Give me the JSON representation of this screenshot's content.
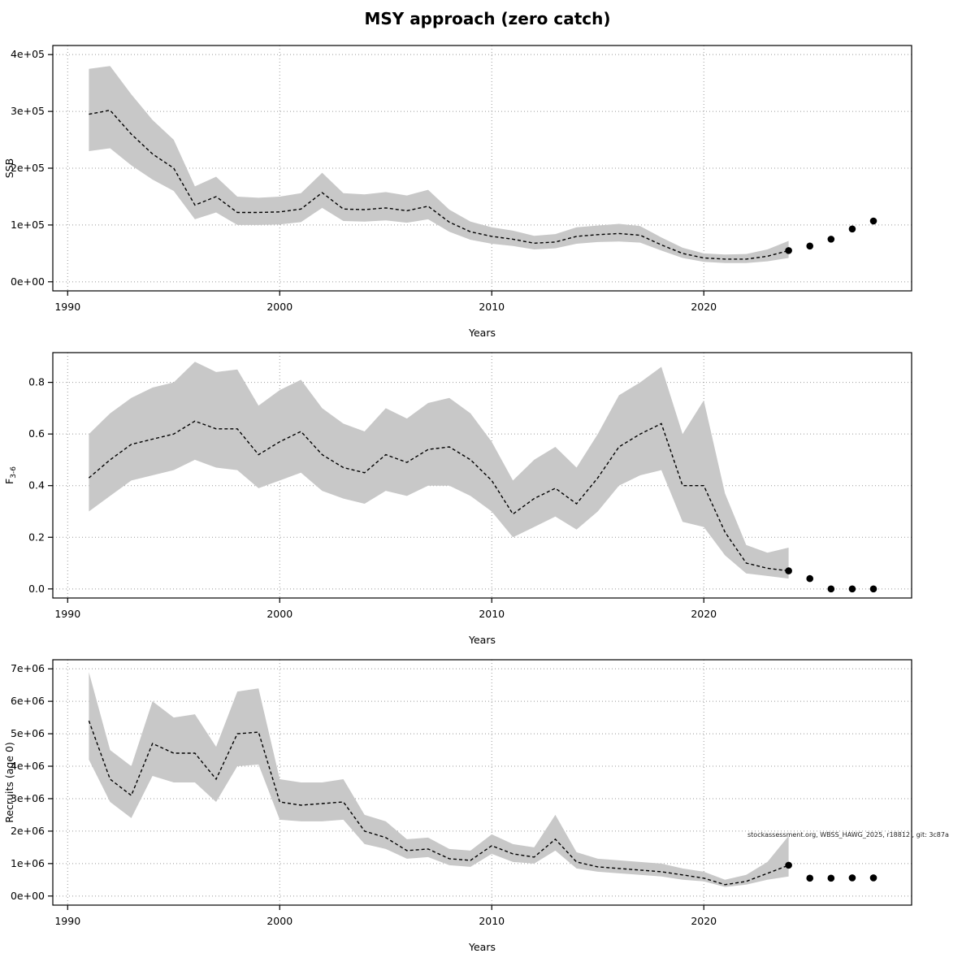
{
  "title": "MSY approach (zero catch)",
  "chart_data": [
    {
      "type": "area",
      "name": "ssb",
      "ylabel": "SSB",
      "xlabel": "Years",
      "xlim": [
        1989.3,
        2029.8
      ],
      "ylim": [
        0,
        400000
      ],
      "grid": true,
      "x": [
        1991,
        1992,
        1993,
        1994,
        1995,
        1996,
        1997,
        1998,
        1999,
        2000,
        2001,
        2002,
        2003,
        2004,
        2005,
        2006,
        2007,
        2008,
        2009,
        2010,
        2011,
        2012,
        2013,
        2014,
        2015,
        2016,
        2017,
        2018,
        2019,
        2020,
        2021,
        2022,
        2023,
        2024
      ],
      "series": [
        {
          "name": "estimate",
          "values": [
            295000,
            302000,
            260000,
            225000,
            200000,
            135000,
            150000,
            122000,
            122000,
            123000,
            128000,
            157000,
            128000,
            127000,
            130000,
            125000,
            133000,
            105000,
            88000,
            80000,
            75000,
            68000,
            70000,
            80000,
            83000,
            85000,
            82000,
            65000,
            50000,
            42000,
            40000,
            40000,
            45000,
            55000
          ]
        },
        {
          "name": "lower",
          "values": [
            230000,
            235000,
            205000,
            180000,
            160000,
            110000,
            122000,
            100000,
            100000,
            101000,
            105000,
            130000,
            107000,
            106000,
            108000,
            104000,
            110000,
            88000,
            74000,
            67000,
            63000,
            57000,
            59000,
            67000,
            70000,
            71000,
            69000,
            55000,
            42000,
            35000,
            33000,
            33000,
            36000,
            42000
          ]
        },
        {
          "name": "upper",
          "values": [
            375000,
            380000,
            330000,
            285000,
            250000,
            168000,
            185000,
            150000,
            148000,
            150000,
            156000,
            192000,
            156000,
            154000,
            158000,
            152000,
            162000,
            127000,
            106000,
            96000,
            90000,
            81000,
            84000,
            96000,
            99000,
            102000,
            98000,
            78000,
            60000,
            50000,
            48000,
            49000,
            57000,
            72000
          ]
        }
      ],
      "forecast": {
        "x": [
          2024,
          2025,
          2026,
          2027,
          2028
        ],
        "y": [
          55000,
          63000,
          75000,
          93000,
          107000
        ]
      },
      "yticks": {
        "values": [
          0,
          100000,
          200000,
          300000,
          400000
        ],
        "labels": [
          "0e+00",
          "1e+05",
          "2e+05",
          "3e+05",
          "4e+05"
        ]
      },
      "xticks": {
        "values": [
          1990,
          2000,
          2010,
          2020
        ],
        "labels": [
          "1990",
          "2000",
          "2010",
          "2020"
        ]
      }
    },
    {
      "type": "area",
      "name": "f-bar",
      "ylabel": "F",
      "ylabel_sub": "3-6",
      "xlabel": "Years",
      "xlim": [
        1989.3,
        2029.8
      ],
      "ylim": [
        0,
        0.88
      ],
      "grid": true,
      "x": [
        1991,
        1992,
        1993,
        1994,
        1995,
        1996,
        1997,
        1998,
        1999,
        2000,
        2001,
        2002,
        2003,
        2004,
        2005,
        2006,
        2007,
        2008,
        2009,
        2010,
        2011,
        2012,
        2013,
        2014,
        2015,
        2016,
        2017,
        2018,
        2019,
        2020,
        2021,
        2022,
        2023,
        2024
      ],
      "series": [
        {
          "name": "estimate",
          "values": [
            0.43,
            0.5,
            0.56,
            0.58,
            0.6,
            0.65,
            0.62,
            0.62,
            0.52,
            0.57,
            0.61,
            0.52,
            0.47,
            0.45,
            0.52,
            0.49,
            0.54,
            0.55,
            0.5,
            0.42,
            0.29,
            0.35,
            0.39,
            0.33,
            0.43,
            0.55,
            0.6,
            0.64,
            0.4,
            0.4,
            0.22,
            0.1,
            0.08,
            0.07
          ]
        },
        {
          "name": "lower",
          "values": [
            0.3,
            0.36,
            0.42,
            0.44,
            0.46,
            0.5,
            0.47,
            0.46,
            0.39,
            0.42,
            0.45,
            0.38,
            0.35,
            0.33,
            0.38,
            0.36,
            0.4,
            0.4,
            0.36,
            0.3,
            0.2,
            0.24,
            0.28,
            0.23,
            0.3,
            0.4,
            0.44,
            0.46,
            0.26,
            0.24,
            0.13,
            0.06,
            0.05,
            0.04
          ]
        },
        {
          "name": "upper",
          "values": [
            0.6,
            0.68,
            0.74,
            0.78,
            0.8,
            0.88,
            0.84,
            0.85,
            0.71,
            0.77,
            0.81,
            0.7,
            0.64,
            0.61,
            0.7,
            0.66,
            0.72,
            0.74,
            0.68,
            0.57,
            0.42,
            0.5,
            0.55,
            0.47,
            0.6,
            0.75,
            0.8,
            0.86,
            0.6,
            0.73,
            0.37,
            0.17,
            0.14,
            0.16
          ]
        }
      ],
      "forecast": {
        "x": [
          2024,
          2025,
          2026,
          2027,
          2028
        ],
        "y": [
          0.07,
          0.04,
          0.0,
          0.0,
          0.0
        ]
      },
      "yticks": {
        "values": [
          0.0,
          0.2,
          0.4,
          0.6,
          0.8
        ],
        "labels": [
          "0.0",
          "0.2",
          "0.4",
          "0.6",
          "0.8"
        ]
      },
      "xticks": {
        "values": [
          1990,
          2000,
          2010,
          2020
        ],
        "labels": [
          "1990",
          "2000",
          "2010",
          "2020"
        ]
      }
    },
    {
      "type": "area",
      "name": "recruits",
      "ylabel": "Recruits (age 0)",
      "xlabel": "Years",
      "xlim": [
        1989.3,
        2029.8
      ],
      "ylim": [
        0,
        7000000
      ],
      "grid": true,
      "watermark": "stockassessment.org, WBSS_HAWG_2025, r18812 , git: 3c87a",
      "x": [
        1991,
        1992,
        1993,
        1994,
        1995,
        1996,
        1997,
        1998,
        1999,
        2000,
        2001,
        2002,
        2003,
        2004,
        2005,
        2006,
        2007,
        2008,
        2009,
        2010,
        2011,
        2012,
        2013,
        2014,
        2015,
        2016,
        2017,
        2018,
        2019,
        2020,
        2021,
        2022,
        2023,
        2024
      ],
      "series": [
        {
          "name": "estimate",
          "values": [
            5400000,
            3600000,
            3100000,
            4700000,
            4400000,
            4400000,
            3600000,
            5000000,
            5050000,
            2900000,
            2800000,
            2850000,
            2900000,
            2000000,
            1800000,
            1400000,
            1450000,
            1150000,
            1100000,
            1550000,
            1300000,
            1200000,
            1750000,
            1050000,
            900000,
            850000,
            800000,
            750000,
            650000,
            550000,
            350000,
            450000,
            700000,
            950000
          ]
        },
        {
          "name": "lower",
          "values": [
            4200000,
            2900000,
            2400000,
            3700000,
            3500000,
            3500000,
            2900000,
            4000000,
            4050000,
            2350000,
            2300000,
            2300000,
            2350000,
            1600000,
            1450000,
            1150000,
            1200000,
            950000,
            900000,
            1300000,
            1050000,
            1000000,
            1400000,
            850000,
            750000,
            700000,
            650000,
            600000,
            500000,
            450000,
            280000,
            350000,
            500000,
            600000
          ]
        },
        {
          "name": "upper",
          "values": [
            6900000,
            4500000,
            4000000,
            6000000,
            5500000,
            5600000,
            4600000,
            6300000,
            6400000,
            3600000,
            3500000,
            3500000,
            3600000,
            2500000,
            2300000,
            1750000,
            1800000,
            1450000,
            1400000,
            1900000,
            1600000,
            1500000,
            2500000,
            1350000,
            1150000,
            1100000,
            1050000,
            1000000,
            850000,
            750000,
            500000,
            650000,
            1050000,
            1850000
          ]
        }
      ],
      "forecast": {
        "x": [
          2024,
          2025,
          2026,
          2027,
          2028
        ],
        "y": [
          950000,
          550000,
          550000,
          560000,
          560000
        ]
      },
      "yticks": {
        "values": [
          0,
          1000000,
          2000000,
          3000000,
          4000000,
          5000000,
          6000000,
          7000000
        ],
        "labels": [
          "0e+00",
          "1e+06",
          "2e+06",
          "3e+06",
          "4e+06",
          "5e+06",
          "6e+06",
          "7e+06"
        ]
      },
      "xticks": {
        "values": [
          1990,
          2000,
          2010,
          2020
        ],
        "labels": [
          "1990",
          "2000",
          "2010",
          "2020"
        ]
      }
    }
  ],
  "colors": {
    "band": "#c8c8c8",
    "line": "#000000",
    "grid": "#999999",
    "dot": "#000000"
  }
}
